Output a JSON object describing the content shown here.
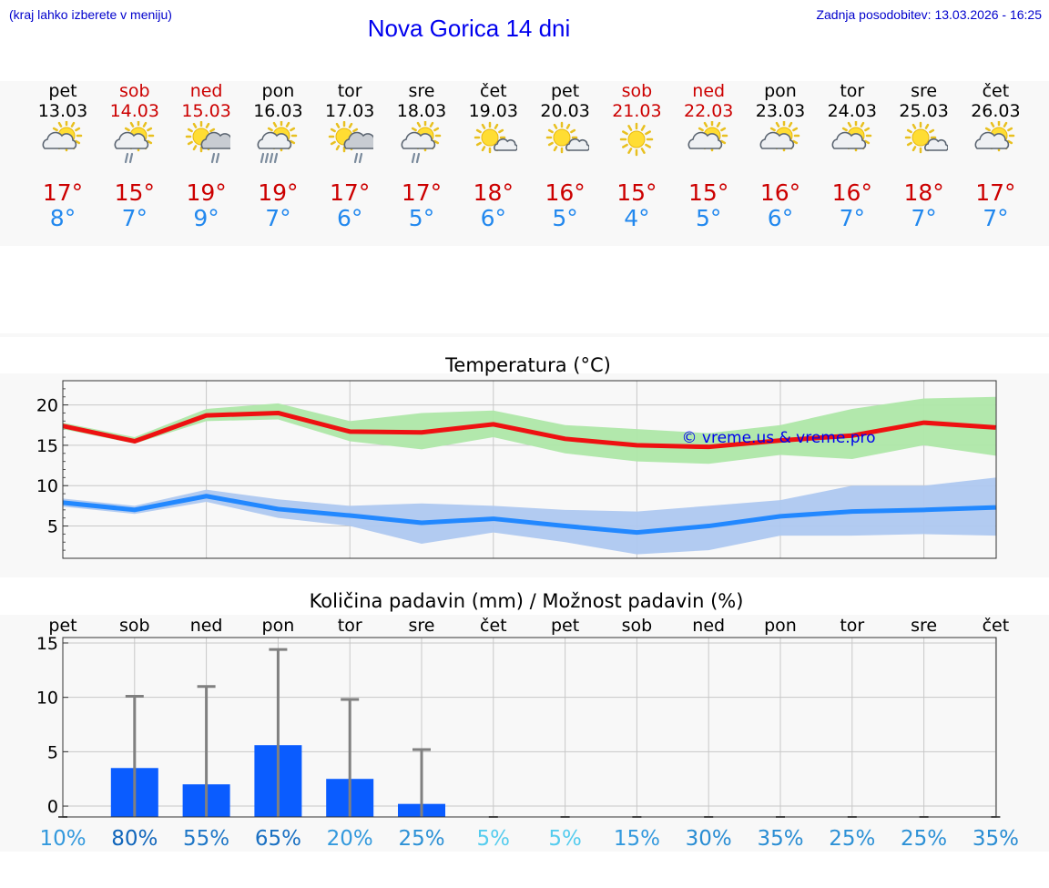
{
  "header": {
    "note": "(kraj lahko izberete v meniju)",
    "title": "Nova Gorica 14 dni",
    "updated": "Zadnja posodobitev: 13.03.2026 - 16:25"
  },
  "colors": {
    "weekend": "#cc0000",
    "max_temp": "#cc0000",
    "min_temp": "#2288ee",
    "max_line": "#ee1111",
    "max_band": "#aee7a8",
    "min_line": "#2288ff",
    "min_band": "#aec8f0",
    "bar": "#0a5cff",
    "errbar": "#808080"
  },
  "days": [
    {
      "name": "pet",
      "date": "13.03",
      "weekend": false,
      "icon": "sun-cloud-icon",
      "tmax": "17°",
      "tmin": "8°"
    },
    {
      "name": "sob",
      "date": "14.03",
      "weekend": true,
      "icon": "sun-cloud-rain-icon",
      "tmax": "15°",
      "tmin": "7°"
    },
    {
      "name": "ned",
      "date": "15.03",
      "weekend": true,
      "icon": "sun-darkcloud-rain-icon",
      "tmax": "19°",
      "tmin": "9°"
    },
    {
      "name": "pon",
      "date": "16.03",
      "weekend": false,
      "icon": "sun-cloud-heavy-rain-icon",
      "tmax": "19°",
      "tmin": "7°"
    },
    {
      "name": "tor",
      "date": "17.03",
      "weekend": false,
      "icon": "sun-darkcloud-rain-icon",
      "tmax": "17°",
      "tmin": "6°"
    },
    {
      "name": "sre",
      "date": "18.03",
      "weekend": false,
      "icon": "sun-cloud-rain-icon",
      "tmax": "17°",
      "tmin": "5°"
    },
    {
      "name": "čet",
      "date": "19.03",
      "weekend": false,
      "icon": "sun-small-cloud-icon",
      "tmax": "18°",
      "tmin": "6°"
    },
    {
      "name": "pet",
      "date": "20.03",
      "weekend": false,
      "icon": "sun-small-cloud-icon",
      "tmax": "16°",
      "tmin": "5°"
    },
    {
      "name": "sob",
      "date": "21.03",
      "weekend": true,
      "icon": "sun-icon",
      "tmax": "15°",
      "tmin": "4°"
    },
    {
      "name": "ned",
      "date": "22.03",
      "weekend": true,
      "icon": "sun-cloud-icon",
      "tmax": "15°",
      "tmin": "5°"
    },
    {
      "name": "pon",
      "date": "23.03",
      "weekend": false,
      "icon": "sun-cloud-icon",
      "tmax": "16°",
      "tmin": "6°"
    },
    {
      "name": "tor",
      "date": "24.03",
      "weekend": false,
      "icon": "sun-cloud-icon",
      "tmax": "16°",
      "tmin": "7°"
    },
    {
      "name": "sre",
      "date": "25.03",
      "weekend": false,
      "icon": "sun-small-cloud-icon",
      "tmax": "18°",
      "tmin": "7°"
    },
    {
      "name": "čet",
      "date": "26.03",
      "weekend": false,
      "icon": "sun-cloud-icon",
      "tmax": "17°",
      "tmin": "7°"
    }
  ],
  "chart_data": [
    {
      "type": "line",
      "title": "Temperatura (°C)",
      "watermark": "© vreme.us & vreme.pro",
      "ylim": [
        1,
        23
      ],
      "yticks": [
        "5",
        "10",
        "15",
        "20"
      ],
      "ytick_values": [
        5,
        10,
        15,
        20
      ],
      "x": [
        0,
        1,
        2,
        3,
        4,
        5,
        6,
        7,
        8,
        9,
        10,
        11,
        12,
        13
      ],
      "series": [
        {
          "name": "max",
          "values": [
            17.4,
            15.5,
            18.7,
            19.0,
            16.7,
            16.6,
            17.6,
            15.8,
            15.0,
            14.8,
            15.6,
            16.2,
            17.8,
            17.2
          ],
          "band_low": [
            17.0,
            15.2,
            18.0,
            18.2,
            15.5,
            14.5,
            16.0,
            14.0,
            13.0,
            12.7,
            13.8,
            13.3,
            15.0,
            13.7
          ],
          "band_high": [
            17.8,
            16.0,
            19.5,
            20.2,
            18.0,
            19.0,
            19.3,
            17.5,
            17.0,
            16.5,
            17.5,
            19.5,
            20.8,
            21.0
          ]
        },
        {
          "name": "min",
          "values": [
            7.9,
            7.0,
            8.7,
            7.1,
            6.3,
            5.4,
            5.9,
            5.0,
            4.2,
            5.0,
            6.2,
            6.8,
            7.0,
            7.3
          ],
          "band_low": [
            7.4,
            6.5,
            8.0,
            6.0,
            5.0,
            2.8,
            4.2,
            3.0,
            1.5,
            2.0,
            3.8,
            3.8,
            4.0,
            3.8
          ],
          "band_high": [
            8.4,
            7.5,
            9.5,
            8.3,
            7.5,
            7.8,
            7.5,
            7.0,
            6.8,
            7.5,
            8.2,
            10.0,
            10.0,
            11.0
          ]
        }
      ]
    },
    {
      "type": "bar",
      "title": "Količina padavin (mm) / Možnost padavin (%)",
      "categories": [
        "pet",
        "sob",
        "ned",
        "pon",
        "tor",
        "sre",
        "čet",
        "pet",
        "sob",
        "ned",
        "pon",
        "tor",
        "sre",
        "čet"
      ],
      "ylim": [
        -1,
        15.5
      ],
      "yticks": [
        "0",
        "5",
        "10",
        "15"
      ],
      "ytick_values": [
        0,
        5,
        10,
        15
      ],
      "values": [
        0,
        3.5,
        2.0,
        5.6,
        2.5,
        0.2,
        0,
        0,
        0,
        0,
        0,
        0,
        0,
        0
      ],
      "error_high": [
        0,
        10.1,
        11.0,
        14.4,
        9.8,
        5.2,
        0,
        0,
        0,
        0,
        0,
        0,
        0,
        0
      ],
      "probability": [
        "10%",
        "80%",
        "55%",
        "65%",
        "20%",
        "25%",
        "5%",
        "5%",
        "15%",
        "30%",
        "35%",
        "25%",
        "25%",
        "35%"
      ],
      "probability_colors": [
        "#3399dd",
        "#1166bb",
        "#1f77c7",
        "#1a70c2",
        "#3399dd",
        "#2d91d6",
        "#55ccee",
        "#55ccee",
        "#3399dd",
        "#2a8dd3",
        "#2a8dd3",
        "#2d91d6",
        "#2d91d6",
        "#2a8dd3"
      ]
    }
  ]
}
